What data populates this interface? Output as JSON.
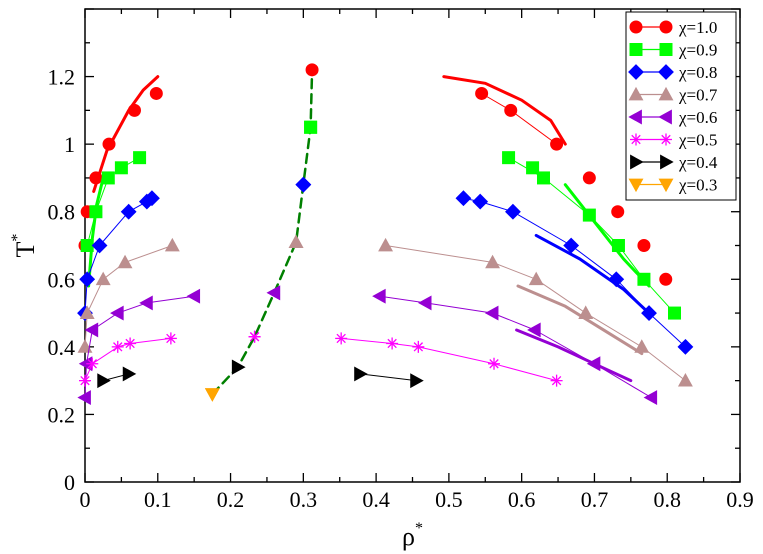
{
  "chart_data": {
    "type": "scatter",
    "title": "",
    "xlabel": "ρ",
    "xlabel_sup": "*",
    "ylabel": "T",
    "ylabel_sup": "*",
    "xlim": [
      0,
      0.9
    ],
    "ylim": [
      0,
      1.4
    ],
    "xticks": [
      0,
      0.1,
      0.2,
      0.3,
      0.4,
      0.5,
      0.6,
      0.7,
      0.8,
      0.9
    ],
    "xtick_labels": [
      "0",
      "0.1",
      "0.2",
      "0.3",
      "0.4",
      "0.5",
      "0.6",
      "0.7",
      "0.8",
      "0.9"
    ],
    "yticks": [
      0,
      0.2,
      0.4,
      0.6,
      0.8,
      1.0,
      1.2
    ],
    "ytick_labels": [
      "0",
      "0.2",
      "0.4",
      "0.6",
      "0.8",
      "1",
      "1.2"
    ],
    "legend_position": "top-right",
    "series": [
      {
        "name": "χ=1.0",
        "color": "#ff0000",
        "marker": "circle",
        "points": [
          [
            0.0,
            0.7
          ],
          [
            0.003,
            0.8
          ],
          [
            0.015,
            0.9
          ],
          [
            0.033,
            1.0
          ],
          [
            0.068,
            1.1
          ],
          [
            0.098,
            1.15
          ],
          [
            0.545,
            1.15
          ],
          [
            0.585,
            1.1
          ],
          [
            0.648,
            1.0
          ],
          [
            0.693,
            0.9
          ],
          [
            0.732,
            0.8
          ],
          [
            0.768,
            0.7
          ],
          [
            0.798,
            0.6
          ]
        ],
        "lines": [
          {
            "style": "solid",
            "width": 3,
            "points": [
              [
                0.012,
                0.86
              ],
              [
                0.03,
                0.98
              ],
              [
                0.06,
                1.1
              ],
              [
                0.08,
                1.16
              ],
              [
                0.1,
                1.2
              ]
            ]
          },
          {
            "style": "solid",
            "width": 3,
            "points": [
              [
                0.493,
                1.2
              ],
              [
                0.55,
                1.18
              ],
              [
                0.6,
                1.13
              ],
              [
                0.64,
                1.07
              ],
              [
                0.66,
                1.0
              ]
            ]
          },
          {
            "style": "solid",
            "width": 1,
            "points": [
              [
                0.545,
                1.15
              ],
              [
                0.585,
                1.1
              ],
              [
                0.648,
                1.0
              ]
            ]
          }
        ]
      },
      {
        "name": "χ=0.9",
        "color": "#00ff00",
        "marker": "square",
        "points": [
          [
            0.003,
            0.7
          ],
          [
            0.015,
            0.8
          ],
          [
            0.032,
            0.9
          ],
          [
            0.05,
            0.93
          ],
          [
            0.075,
            0.96
          ],
          [
            0.31,
            1.05
          ],
          [
            0.582,
            0.96
          ],
          [
            0.615,
            0.93
          ],
          [
            0.63,
            0.9
          ],
          [
            0.693,
            0.79
          ],
          [
            0.733,
            0.7
          ],
          [
            0.768,
            0.6
          ],
          [
            0.81,
            0.5
          ]
        ],
        "lines": [
          {
            "style": "solid",
            "width": 1,
            "points": [
              [
                0.003,
                0.7
              ],
              [
                0.015,
                0.8
              ],
              [
                0.032,
                0.9
              ],
              [
                0.05,
                0.93
              ],
              [
                0.075,
                0.96
              ]
            ]
          },
          {
            "style": "solid",
            "width": 1,
            "points": [
              [
                0.582,
                0.96
              ],
              [
                0.63,
                0.9
              ],
              [
                0.693,
                0.79
              ],
              [
                0.733,
                0.7
              ],
              [
                0.768,
                0.6
              ],
              [
                0.81,
                0.5
              ]
            ]
          },
          {
            "style": "solid",
            "width": 3,
            "points": [
              [
                0.005,
                0.58
              ],
              [
                0.01,
                0.72
              ],
              [
                0.016,
                0.82
              ],
              [
                0.025,
                0.9
              ]
            ]
          },
          {
            "style": "solid",
            "width": 3,
            "points": [
              [
                0.66,
                0.88
              ],
              [
                0.7,
                0.77
              ],
              [
                0.74,
                0.66
              ],
              [
                0.775,
                0.58
              ]
            ]
          }
        ]
      },
      {
        "name": "χ=0.8",
        "color": "#0000ff",
        "marker": "diamond",
        "points": [
          [
            0.0,
            0.5
          ],
          [
            0.003,
            0.6
          ],
          [
            0.02,
            0.7
          ],
          [
            0.06,
            0.8
          ],
          [
            0.085,
            0.83
          ],
          [
            0.092,
            0.84
          ],
          [
            0.3,
            0.88
          ],
          [
            0.52,
            0.84
          ],
          [
            0.543,
            0.83
          ],
          [
            0.588,
            0.8
          ],
          [
            0.668,
            0.7
          ],
          [
            0.73,
            0.6
          ],
          [
            0.775,
            0.5
          ],
          [
            0.825,
            0.4
          ]
        ],
        "lines": [
          {
            "style": "solid",
            "width": 1,
            "points": [
              [
                0.0,
                0.5
              ],
              [
                0.003,
                0.6
              ],
              [
                0.02,
                0.7
              ],
              [
                0.06,
                0.8
              ],
              [
                0.085,
                0.83
              ],
              [
                0.092,
                0.84
              ]
            ]
          },
          {
            "style": "solid",
            "width": 1,
            "points": [
              [
                0.52,
                0.84
              ],
              [
                0.543,
                0.83
              ],
              [
                0.588,
                0.8
              ],
              [
                0.668,
                0.7
              ],
              [
                0.73,
                0.6
              ],
              [
                0.775,
                0.5
              ],
              [
                0.825,
                0.4
              ]
            ]
          },
          {
            "style": "solid",
            "width": 3,
            "points": [
              [
                0.62,
                0.73
              ],
              [
                0.68,
                0.66
              ],
              [
                0.74,
                0.57
              ],
              [
                0.775,
                0.5
              ]
            ]
          }
        ]
      },
      {
        "name": "χ=0.7",
        "color": "#bc8f8f",
        "marker": "triangle-up",
        "points": [
          [
            0.0,
            0.4
          ],
          [
            0.003,
            0.5
          ],
          [
            0.025,
            0.6
          ],
          [
            0.055,
            0.65
          ],
          [
            0.12,
            0.7
          ],
          [
            0.29,
            0.71
          ],
          [
            0.413,
            0.7
          ],
          [
            0.56,
            0.65
          ],
          [
            0.62,
            0.6
          ],
          [
            0.688,
            0.5
          ],
          [
            0.765,
            0.4
          ],
          [
            0.825,
            0.3
          ]
        ],
        "lines": [
          {
            "style": "solid",
            "width": 1,
            "points": [
              [
                0.0,
                0.4
              ],
              [
                0.003,
                0.5
              ],
              [
                0.025,
                0.6
              ],
              [
                0.055,
                0.65
              ],
              [
                0.12,
                0.7
              ]
            ]
          },
          {
            "style": "solid",
            "width": 1,
            "points": [
              [
                0.413,
                0.7
              ],
              [
                0.56,
                0.65
              ],
              [
                0.62,
                0.6
              ],
              [
                0.688,
                0.5
              ],
              [
                0.765,
                0.4
              ],
              [
                0.825,
                0.3
              ]
            ]
          },
          {
            "style": "solid",
            "width": 3,
            "points": [
              [
                0.595,
                0.58
              ],
              [
                0.66,
                0.52
              ],
              [
                0.72,
                0.44
              ],
              [
                0.765,
                0.38
              ]
            ]
          }
        ]
      },
      {
        "name": "χ=0.6",
        "color": "#9400d3",
        "marker": "triangle-left",
        "points": [
          [
            0.0,
            0.25
          ],
          [
            0.002,
            0.35
          ],
          [
            0.01,
            0.45
          ],
          [
            0.045,
            0.5
          ],
          [
            0.085,
            0.53
          ],
          [
            0.15,
            0.55
          ],
          [
            0.26,
            0.56
          ],
          [
            0.405,
            0.55
          ],
          [
            0.468,
            0.53
          ],
          [
            0.56,
            0.5
          ],
          [
            0.618,
            0.45
          ],
          [
            0.7,
            0.35
          ],
          [
            0.778,
            0.25
          ]
        ],
        "lines": [
          {
            "style": "solid",
            "width": 1,
            "points": [
              [
                0.0,
                0.25
              ],
              [
                0.002,
                0.35
              ],
              [
                0.01,
                0.45
              ],
              [
                0.045,
                0.5
              ],
              [
                0.085,
                0.53
              ],
              [
                0.15,
                0.55
              ]
            ]
          },
          {
            "style": "solid",
            "width": 1,
            "points": [
              [
                0.405,
                0.55
              ],
              [
                0.468,
                0.53
              ],
              [
                0.56,
                0.5
              ],
              [
                0.618,
                0.45
              ],
              [
                0.7,
                0.35
              ],
              [
                0.778,
                0.25
              ]
            ]
          },
          {
            "style": "solid",
            "width": 3,
            "points": [
              [
                0.593,
                0.45
              ],
              [
                0.65,
                0.4
              ],
              [
                0.7,
                0.35
              ],
              [
                0.75,
                0.3
              ]
            ]
          }
        ]
      },
      {
        "name": "χ=0.5",
        "color": "#ff00ff",
        "marker": "star",
        "points": [
          [
            0.0,
            0.3
          ],
          [
            0.01,
            0.35
          ],
          [
            0.045,
            0.4
          ],
          [
            0.062,
            0.41
          ],
          [
            0.118,
            0.425
          ],
          [
            0.233,
            0.43
          ],
          [
            0.352,
            0.425
          ],
          [
            0.422,
            0.41
          ],
          [
            0.458,
            0.4
          ],
          [
            0.562,
            0.35
          ],
          [
            0.648,
            0.3
          ]
        ],
        "lines": [
          {
            "style": "solid",
            "width": 1,
            "points": [
              [
                0.0,
                0.3
              ],
              [
                0.01,
                0.35
              ],
              [
                0.045,
                0.4
              ],
              [
                0.062,
                0.41
              ],
              [
                0.118,
                0.425
              ]
            ]
          },
          {
            "style": "solid",
            "width": 1,
            "points": [
              [
                0.352,
                0.425
              ],
              [
                0.422,
                0.41
              ],
              [
                0.458,
                0.4
              ],
              [
                0.562,
                0.35
              ],
              [
                0.648,
                0.3
              ]
            ]
          }
        ]
      },
      {
        "name": "χ=0.4",
        "color": "#000000",
        "marker": "triangle-right",
        "points": [
          [
            0.025,
            0.3
          ],
          [
            0.06,
            0.32
          ],
          [
            0.21,
            0.34
          ],
          [
            0.378,
            0.32
          ],
          [
            0.455,
            0.3
          ]
        ],
        "lines": [
          {
            "style": "solid",
            "width": 1,
            "points": [
              [
                0.025,
                0.3
              ],
              [
                0.06,
                0.32
              ]
            ]
          },
          {
            "style": "solid",
            "width": 1,
            "points": [
              [
                0.378,
                0.32
              ],
              [
                0.455,
                0.3
              ]
            ]
          }
        ]
      },
      {
        "name": "χ=0.3",
        "color": "#ffa500",
        "marker": "triangle-down",
        "points": [
          [
            0.175,
            0.26
          ]
        ],
        "lines": []
      }
    ],
    "critical_points": {
      "color": "#008000",
      "style": "dashed",
      "curve": [
        [
          0.175,
          0.26
        ],
        [
          0.21,
          0.34
        ],
        [
          0.233,
          0.43
        ],
        [
          0.26,
          0.56
        ],
        [
          0.29,
          0.71
        ],
        [
          0.3,
          0.88
        ],
        [
          0.31,
          1.05
        ],
        [
          0.312,
          1.22
        ]
      ],
      "top_marker": {
        "x": 0.312,
        "y": 1.22,
        "color": "#ff0000",
        "marker": "circle"
      }
    }
  }
}
